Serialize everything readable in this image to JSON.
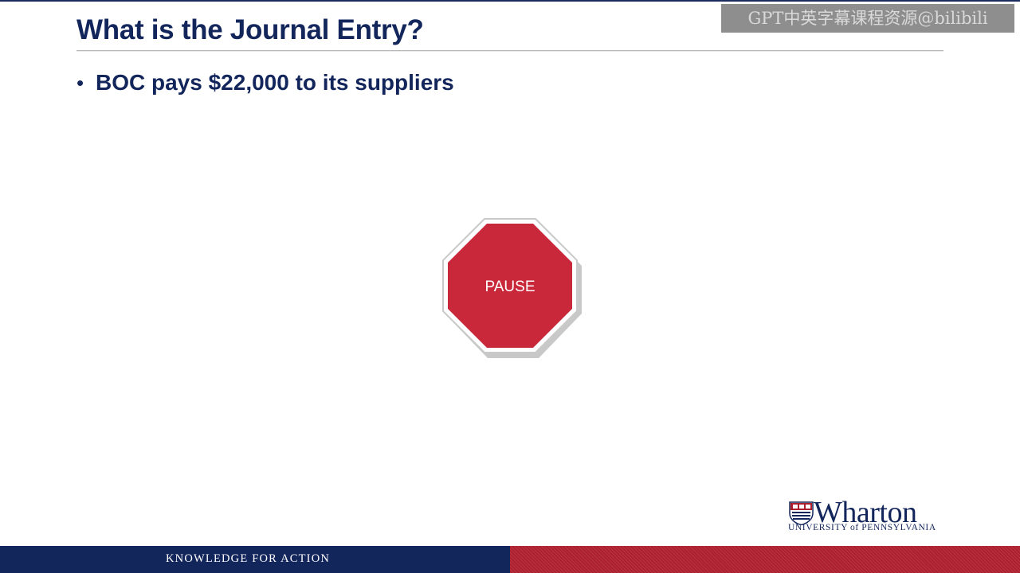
{
  "slide": {
    "title": "What is the Journal Entry?",
    "bullets": [
      {
        "marker": "•",
        "text": "BOC pays $22,000 to its suppliers"
      }
    ],
    "stop_sign": {
      "label": "PAUSE",
      "icon": "stop-sign-octagon",
      "color": "#c8283a"
    }
  },
  "watermark": {
    "text": "GPT中英字幕课程资源@bilibili"
  },
  "branding": {
    "logo_name": "Wharton",
    "logo_subtitle": "UNIVERSITY of PENNSYLVANIA",
    "logo_icon": "penn-shield-icon"
  },
  "footer": {
    "tagline": "KNOWLEDGE FOR ACTION",
    "navy": "#13265c",
    "red": "#ad1f2d"
  }
}
